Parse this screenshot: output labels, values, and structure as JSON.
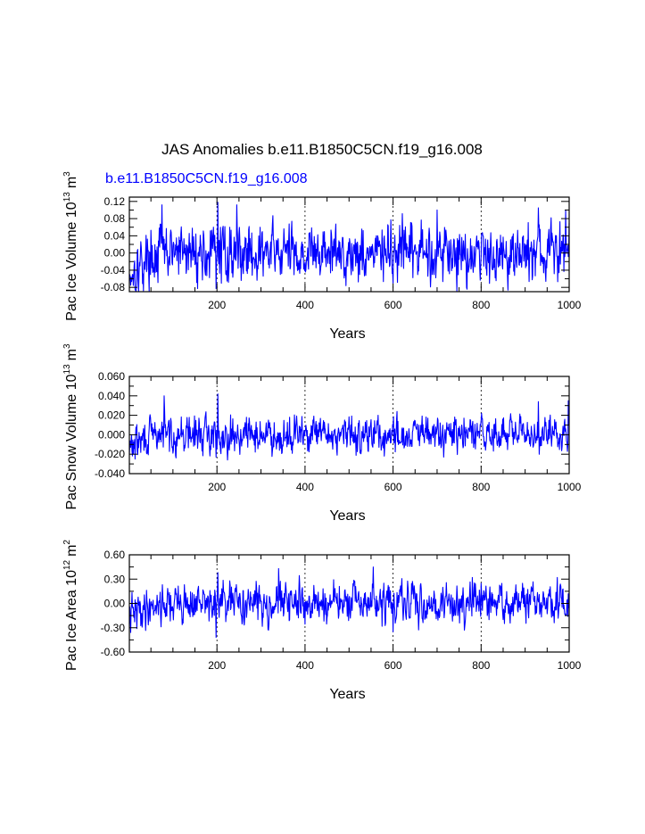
{
  "figure": {
    "title": "JAS Anomalies b.e11.B1850C5CN.f19_g16.008",
    "series_label": "b.e11.B1850C5CN.f19_g16.008",
    "line_color": "#0000ff",
    "frame_color": "#000000",
    "refline_color": "#000000"
  },
  "chart_data": [
    {
      "type": "line",
      "ylabel": "Pac Ice Volume 10¹³ m³",
      "ylabel_base": "Pac Ice Volume 10",
      "ylabel_exp": "13",
      "ylabel_unit": "m",
      "ylabel_unit_exp": "3",
      "xlabel": "Years",
      "xlim": [
        1,
        1000
      ],
      "ylim": [
        -0.09,
        0.13
      ],
      "yticks": [
        -0.08,
        -0.04,
        0.0,
        0.04,
        0.08,
        0.12
      ],
      "yticklabels": [
        "-0.08",
        "-0.04",
        "0.00",
        "0.04",
        "0.08",
        "0.12"
      ],
      "yminor": [
        -0.06,
        -0.02,
        0.02,
        0.06,
        0.1
      ],
      "xticks": [
        200,
        400,
        600,
        800,
        1000
      ],
      "xticklabels": [
        "200",
        "400",
        "600",
        "800",
        "1000"
      ],
      "vlines": [
        200,
        400,
        600,
        800
      ],
      "grid": false,
      "series": [
        {
          "name": "b.e11.B1850C5CN.f19_g16.008",
          "color": "#0000ff",
          "amplitude": 0.03,
          "seed": 17,
          "start_offset": -0.03,
          "points": [
            [
              1,
              -0.065
            ],
            [
              60,
              -0.045
            ],
            [
              75,
              0.112
            ],
            [
              198,
              -0.083
            ],
            [
              202,
              0.118
            ],
            [
              245,
              0.112
            ],
            [
              600,
              -0.07
            ],
            [
              700,
              0.1
            ],
            [
              930,
              0.105
            ],
            [
              992,
              0.1
            ]
          ]
        }
      ]
    },
    {
      "type": "line",
      "ylabel": "Pac Snow Volume 10¹³ m³",
      "ylabel_base": "Pac Snow Volume 10",
      "ylabel_exp": "13",
      "ylabel_unit": "m",
      "ylabel_unit_exp": "3",
      "xlabel": "Years",
      "xlim": [
        1,
        1000
      ],
      "ylim": [
        -0.04,
        0.06
      ],
      "yticks": [
        -0.04,
        -0.02,
        0.0,
        0.02,
        0.04,
        0.06
      ],
      "yticklabels": [
        "-0.040",
        "-0.020",
        "0.000",
        "0.020",
        "0.040",
        "0.060"
      ],
      "yminor": [
        -0.03,
        -0.01,
        0.01,
        0.03,
        0.05
      ],
      "xticks": [
        200,
        400,
        600,
        800,
        1000
      ],
      "xticklabels": [
        "200",
        "400",
        "600",
        "800",
        "1000"
      ],
      "vlines": [
        200,
        400,
        600,
        800
      ],
      "grid": false,
      "series": [
        {
          "name": "b.e11.B1850C5CN.f19_g16.008",
          "color": "#0000ff",
          "amplitude": 0.0085,
          "seed": 29,
          "start_offset": -0.008,
          "points": [
            [
              1,
              -0.02
            ],
            [
              80,
              0.04
            ],
            [
              198,
              -0.023
            ],
            [
              202,
              0.042
            ],
            [
              580,
              -0.022
            ],
            [
              930,
              0.034
            ],
            [
              998,
              0.035
            ]
          ]
        }
      ]
    },
    {
      "type": "line",
      "ylabel": "Pac Ice Area 10¹² m²",
      "ylabel_base": "Pac Ice Area 10",
      "ylabel_exp": "12",
      "ylabel_unit": "m",
      "ylabel_unit_exp": "2",
      "xlabel": "Years",
      "xlim": [
        1,
        1000
      ],
      "ylim": [
        -0.6,
        0.6
      ],
      "yticks": [
        -0.6,
        -0.3,
        0.0,
        0.3,
        0.6
      ],
      "yticklabels": [
        "-0.60",
        "-0.30",
        "0.00",
        "0.30",
        "0.60"
      ],
      "yminor": [
        -0.45,
        -0.15,
        0.15,
        0.45
      ],
      "xticks": [
        200,
        400,
        600,
        800,
        1000
      ],
      "xticklabels": [
        "200",
        "400",
        "600",
        "800",
        "1000"
      ],
      "vlines": [
        200,
        400,
        600,
        800
      ],
      "grid": false,
      "series": [
        {
          "name": "b.e11.B1850C5CN.f19_g16.008",
          "color": "#0000ff",
          "amplitude": 0.11,
          "seed": 41,
          "start_offset": -0.1,
          "points": [
            [
              1,
              -0.25
            ],
            [
              198,
              -0.42
            ],
            [
              202,
              0.38
            ],
            [
              340,
              0.43
            ],
            [
              555,
              0.45
            ],
            [
              600,
              -0.35
            ],
            [
              780,
              0.32
            ]
          ]
        }
      ]
    }
  ]
}
